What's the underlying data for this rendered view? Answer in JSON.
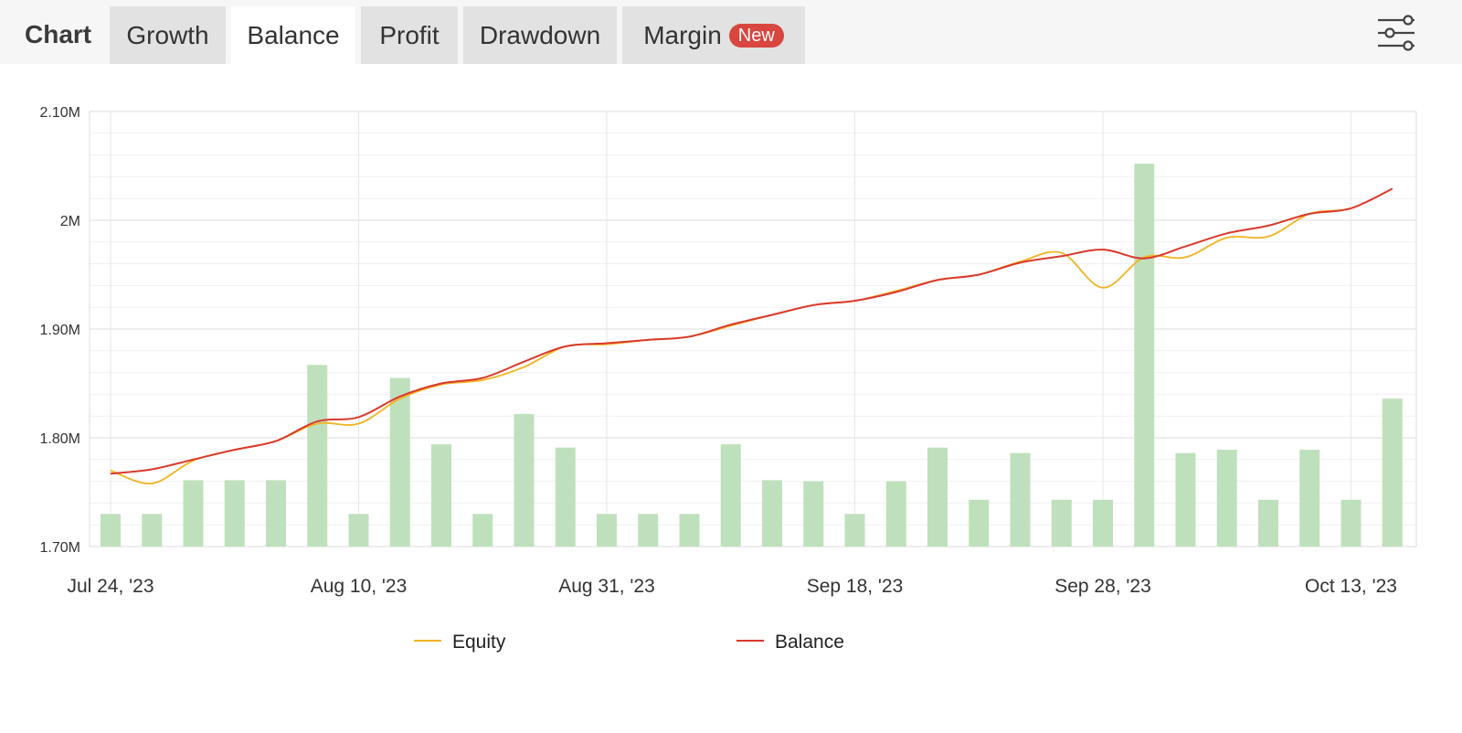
{
  "header": {
    "section_label": "Chart",
    "tabs": [
      {
        "label": "Growth",
        "active": false
      },
      {
        "label": "Balance",
        "active": true
      },
      {
        "label": "Profit",
        "active": false
      },
      {
        "label": "Drawdown",
        "active": false
      },
      {
        "label": "Margin",
        "active": false,
        "badge": "New"
      }
    ],
    "settings_icon": "sliders-icon"
  },
  "colors": {
    "equity": "#f2b321",
    "balance": "#d9392c",
    "bars": "#bfe0bc",
    "badge": "#d9463f"
  },
  "chart_data": {
    "type": "line",
    "y_tick_labels": [
      "1.70M",
      "1.80M",
      "1.90M",
      "2M",
      "2.10M"
    ],
    "ylim": [
      1700000,
      2100000
    ],
    "x_tick_labels": [
      "Jul 24, '23",
      "Aug 10, '23",
      "Aug 31, '23",
      "Sep 18, '23",
      "Sep 28, '23",
      "Oct 13, '23"
    ],
    "grid": true,
    "legend_position": "bottom",
    "series": [
      {
        "name": "Equity",
        "color": "#f2b321",
        "values": [
          1770000,
          1758000,
          1779000,
          1789000,
          1797000,
          1813000,
          1813000,
          1836000,
          1849000,
          1853000,
          1865000,
          1884000,
          1886000,
          1890000,
          1893000,
          1903000,
          1913000,
          1922000,
          1926000,
          1935000,
          1945000,
          1950000,
          1962000,
          1970000,
          1938000,
          1966000,
          1966000,
          1984000,
          1985000,
          2006000,
          2011000,
          2029000
        ]
      },
      {
        "name": "Balance",
        "color": "#d9392c",
        "values": [
          1767000,
          1771000,
          1780000,
          1789000,
          1797000,
          1815000,
          1819000,
          1838000,
          1850000,
          1855000,
          1870000,
          1884000,
          1887000,
          1890000,
          1893000,
          1904000,
          1913000,
          1922000,
          1926000,
          1934000,
          1945000,
          1950000,
          1961000,
          1967000,
          1973000,
          1965000,
          1976000,
          1988000,
          1995000,
          2006000,
          2011000,
          2029000
        ]
      }
    ],
    "bars": {
      "color": "#bfe0bc",
      "values": [
        1730000,
        1730000,
        1761000,
        1761000,
        1761000,
        1867000,
        1730000,
        1855000,
        1794000,
        1730000,
        1822000,
        1791000,
        1730000,
        1730000,
        1730000,
        1794000,
        1761000,
        1760000,
        1730000,
        1760000,
        1791000,
        1743000,
        1786000,
        1743000,
        1743000,
        2052000,
        1786000,
        1789000,
        1743000,
        1789000,
        1743000,
        1836000
      ]
    }
  }
}
